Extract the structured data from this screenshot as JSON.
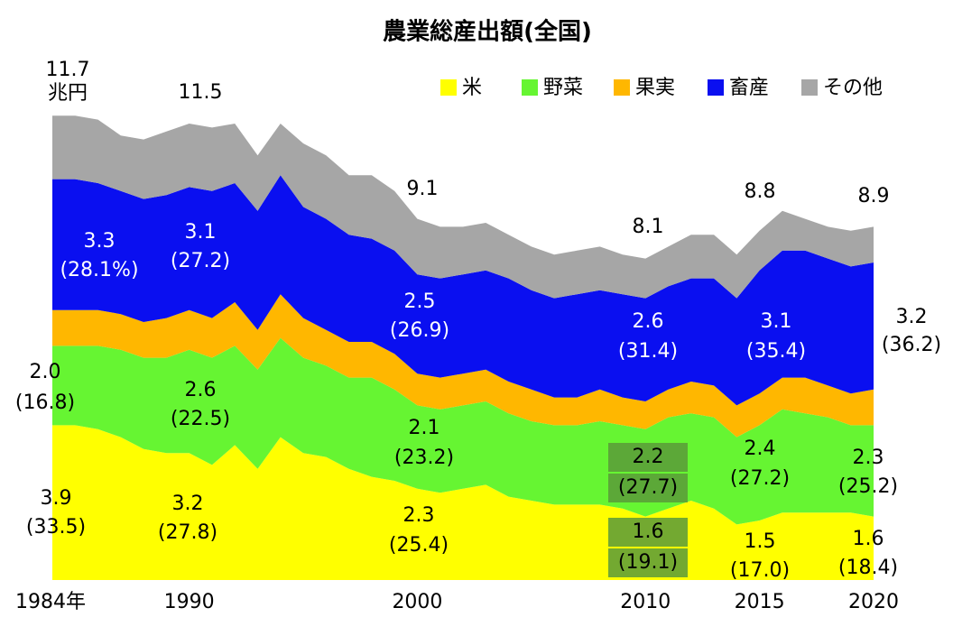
{
  "chart_data": {
    "type": "stacked_area",
    "title": "農業総産出額(全国)",
    "x": [
      1984,
      1985,
      1986,
      1987,
      1988,
      1989,
      1990,
      1991,
      1992,
      1993,
      1994,
      1995,
      1996,
      1997,
      1998,
      1999,
      2000,
      2001,
      2002,
      2003,
      2004,
      2005,
      2006,
      2007,
      2008,
      2009,
      2010,
      2011,
      2012,
      2013,
      2014,
      2015,
      2016,
      2017,
      2018,
      2019,
      2020
    ],
    "xlim": [
      1984,
      2020
    ],
    "xticks": [
      {
        "value": 1984,
        "label": "1984年"
      },
      1990,
      2000,
      2010,
      2015,
      2020
    ],
    "ylim": [
      0,
      12
    ],
    "legend": "top-right",
    "series": [
      {
        "name": "米",
        "color": "#ffff00",
        "values": [
          3.9,
          3.9,
          3.8,
          3.6,
          3.3,
          3.2,
          3.2,
          2.9,
          3.4,
          2.8,
          3.6,
          3.2,
          3.1,
          2.8,
          2.6,
          2.5,
          2.3,
          2.2,
          2.3,
          2.4,
          2.1,
          2.0,
          1.9,
          1.9,
          1.9,
          1.8,
          1.6,
          1.8,
          2.0,
          1.8,
          1.4,
          1.5,
          1.7,
          1.7,
          1.7,
          1.7,
          1.6
        ]
      },
      {
        "name": "野菜",
        "color": "#66f532",
        "values": [
          2.0,
          2.0,
          2.1,
          2.2,
          2.3,
          2.4,
          2.6,
          2.7,
          2.5,
          2.5,
          2.5,
          2.4,
          2.3,
          2.3,
          2.5,
          2.3,
          2.1,
          2.1,
          2.1,
          2.1,
          2.1,
          2.0,
          2.0,
          2.0,
          2.1,
          2.1,
          2.2,
          2.3,
          2.2,
          2.3,
          2.2,
          2.4,
          2.6,
          2.5,
          2.4,
          2.2,
          2.3
        ]
      },
      {
        "name": "果実",
        "color": "#ffb700",
        "values": [
          0.9,
          0.9,
          0.9,
          0.9,
          0.9,
          1.0,
          1.0,
          1.0,
          1.1,
          1.0,
          1.1,
          1.0,
          0.9,
          0.9,
          0.9,
          0.9,
          0.8,
          0.8,
          0.8,
          0.8,
          0.8,
          0.8,
          0.7,
          0.7,
          0.8,
          0.7,
          0.7,
          0.7,
          0.8,
          0.8,
          0.8,
          0.8,
          0.8,
          0.9,
          0.8,
          0.8,
          0.9
        ]
      },
      {
        "name": "畜産",
        "color": "#0a0ff0",
        "values": [
          3.3,
          3.3,
          3.2,
          3.1,
          3.1,
          3.1,
          3.1,
          3.2,
          3.0,
          3.0,
          3.0,
          2.8,
          2.8,
          2.7,
          2.6,
          2.6,
          2.5,
          2.5,
          2.5,
          2.5,
          2.6,
          2.5,
          2.5,
          2.6,
          2.5,
          2.6,
          2.6,
          2.6,
          2.6,
          2.7,
          2.7,
          3.1,
          3.2,
          3.2,
          3.2,
          3.2,
          3.2
        ]
      },
      {
        "name": "その他",
        "color": "#a6a6a6",
        "values": [
          1.6,
          1.6,
          1.6,
          1.4,
          1.5,
          1.6,
          1.6,
          1.6,
          1.5,
          1.4,
          1.3,
          1.6,
          1.6,
          1.5,
          1.6,
          1.5,
          1.4,
          1.3,
          1.2,
          1.2,
          1.1,
          1.1,
          1.1,
          1.1,
          1.1,
          1.0,
          1.0,
          1.0,
          1.1,
          1.1,
          1.1,
          1.0,
          1.0,
          0.8,
          0.8,
          0.9,
          0.9
        ]
      }
    ],
    "annotations": [
      "11.7",
      "兆円",
      "11.5",
      "9.1",
      "8.1",
      "8.8",
      "8.9",
      "3.3",
      "(28.1%)",
      "3.1",
      "(27.2)",
      "2.5",
      "(26.9)",
      "2.6",
      "(31.4)",
      "3.1",
      "(35.4)",
      "3.2",
      "(36.2)",
      "2.0",
      "(16.8)",
      "2.6",
      "(22.5)",
      "2.1",
      "(23.2)",
      "2.2",
      "(27.7)",
      "2.4",
      "(27.2)",
      "2.3",
      "(25.2)",
      "3.9",
      "(33.5)",
      "3.2",
      "(27.8)",
      "2.3",
      "(25.4)",
      "1.6",
      "(19.1)",
      "1.5",
      "(17.0)",
      "1.6",
      "(18.4)"
    ]
  }
}
